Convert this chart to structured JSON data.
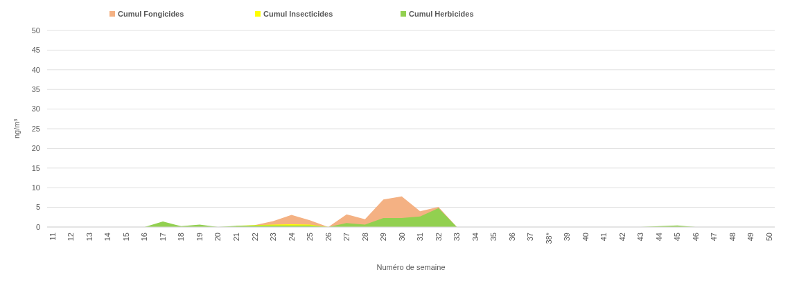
{
  "chart_data": {
    "type": "area",
    "xlabel": "Numéro de semaine",
    "ylabel": "ng/m³",
    "categories": [
      "11",
      "12",
      "13",
      "14",
      "15",
      "16",
      "17",
      "18",
      "19",
      "20",
      "21",
      "22",
      "23",
      "24",
      "25",
      "26",
      "27",
      "28",
      "29",
      "30",
      "31",
      "32",
      "33",
      "34",
      "35",
      "36",
      "37",
      "38*",
      "39",
      "40",
      "41",
      "42",
      "43",
      "44",
      "45",
      "46",
      "47",
      "48",
      "49",
      "50"
    ],
    "series": [
      {
        "name": "Cumul Herbicides",
        "color": "#92d050",
        "values": [
          0,
          0,
          0,
          0,
          0,
          0,
          1.4,
          0.2,
          0.6,
          0,
          0.3,
          0.4,
          0.4,
          0.4,
          0.4,
          0,
          1.0,
          0.6,
          2.3,
          2.3,
          2.7,
          4.8,
          0,
          0,
          0,
          0,
          0,
          0,
          0,
          0,
          0,
          0,
          0,
          0.2,
          0.4,
          0,
          0,
          0,
          0,
          0
        ]
      },
      {
        "name": "Cumul Insecticides",
        "color": "#ffff00",
        "values": [
          null,
          null,
          null,
          null,
          null,
          null,
          null,
          null,
          null,
          null,
          0.3,
          0.5,
          0.6,
          0.7,
          0.6,
          0,
          null,
          null,
          null,
          null,
          null,
          null,
          null,
          null,
          null,
          null,
          null,
          null,
          null,
          null,
          null,
          null,
          null,
          null,
          null,
          null,
          null,
          null,
          null,
          null
        ]
      },
      {
        "name": "Cumul Fongicides",
        "color": "#f4b183",
        "values": [
          null,
          null,
          null,
          null,
          null,
          null,
          null,
          null,
          null,
          null,
          null,
          0.5,
          1.5,
          3.1,
          1.7,
          0,
          3.2,
          2.0,
          7.0,
          7.8,
          4.0,
          5.1,
          0,
          null,
          null,
          null,
          null,
          null,
          null,
          null,
          null,
          null,
          null,
          null,
          null,
          null,
          null,
          null,
          null,
          null
        ]
      }
    ],
    "ylim": [
      0,
      50
    ],
    "yticks": [
      0,
      5,
      10,
      15,
      20,
      25,
      30,
      35,
      40,
      45,
      50
    ],
    "grid": "y",
    "legend": "top"
  }
}
